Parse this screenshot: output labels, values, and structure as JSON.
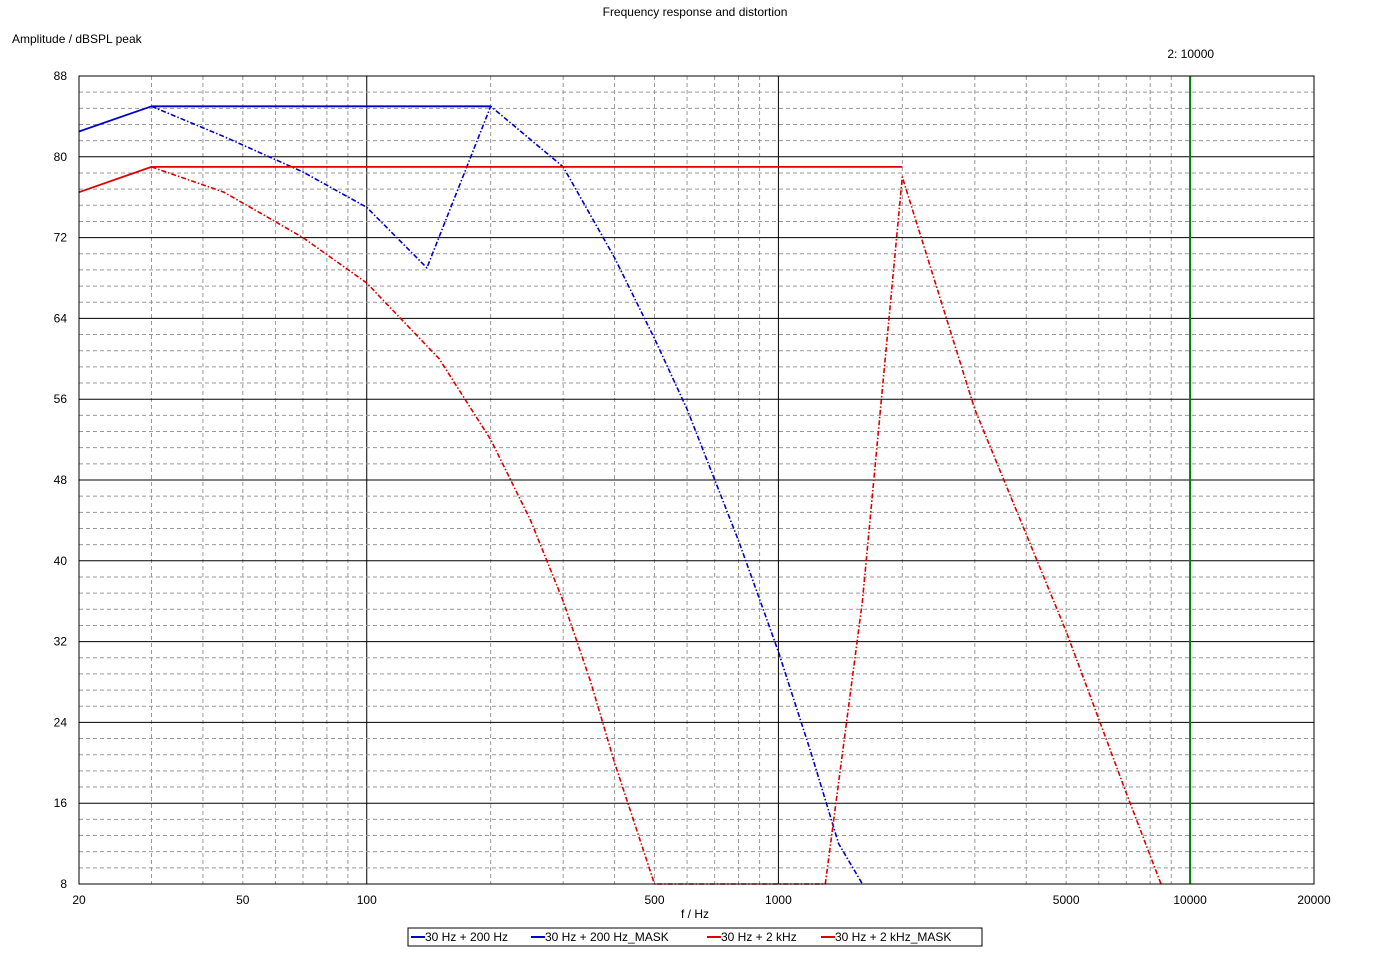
{
  "chart_data": {
    "type": "line",
    "title": "Frequency response and distortion",
    "ylabel": "Amplitude / dBSPL peak",
    "xlabel": "f / Hz",
    "x_scale": "log",
    "xlim": [
      20,
      20000
    ],
    "ylim": [
      8,
      88
    ],
    "x_tick_labels": [
      "20",
      "50",
      "100",
      "500",
      "1000",
      "5000",
      "10000",
      "20000"
    ],
    "y_tick_labels": [
      "88",
      "80",
      "72",
      "64",
      "56",
      "48",
      "40",
      "32",
      "24",
      "16",
      "8"
    ],
    "cursor": {
      "x": 10000,
      "label": "2:  10000",
      "color": "#008000"
    },
    "grid": true,
    "legend_position": "bottom",
    "series": [
      {
        "name": "30 Hz + 200 Hz",
        "color": "#0000cc",
        "dash": "solid",
        "points": [
          [
            20,
            82.5
          ],
          [
            30,
            85
          ],
          [
            200,
            85
          ]
        ]
      },
      {
        "name": "30 Hz + 200 Hz_MASK",
        "color": "#0000cc",
        "dash": "dashed",
        "points": [
          [
            30,
            85
          ],
          [
            45,
            82
          ],
          [
            70,
            78.5
          ],
          [
            100,
            75
          ],
          [
            140,
            69
          ],
          [
            200,
            85
          ],
          [
            300,
            79
          ],
          [
            400,
            70
          ],
          [
            500,
            62
          ],
          [
            600,
            55
          ],
          [
            800,
            42
          ],
          [
            1000,
            31
          ],
          [
            1200,
            21
          ],
          [
            1400,
            12
          ],
          [
            1600,
            8
          ]
        ]
      },
      {
        "name": "30 Hz + 2 kHz",
        "color": "#dd0000",
        "dash": "solid",
        "points": [
          [
            20,
            76.5
          ],
          [
            30,
            79
          ],
          [
            2000,
            79
          ]
        ]
      },
      {
        "name": "30 Hz + 2 kHz_MASK",
        "color": "#dd0000",
        "dash": "dashed",
        "points": [
          [
            30,
            79
          ],
          [
            45,
            76.5
          ],
          [
            70,
            72
          ],
          [
            100,
            67.5
          ],
          [
            150,
            60
          ],
          [
            200,
            52
          ],
          [
            250,
            44
          ],
          [
            300,
            36
          ],
          [
            350,
            28
          ],
          [
            400,
            20
          ],
          [
            500,
            8
          ],
          [
            1300,
            8
          ],
          [
            1600,
            36
          ],
          [
            2000,
            78
          ],
          [
            3000,
            55
          ],
          [
            5000,
            33
          ],
          [
            7000,
            17
          ],
          [
            8500,
            8
          ]
        ]
      }
    ]
  }
}
